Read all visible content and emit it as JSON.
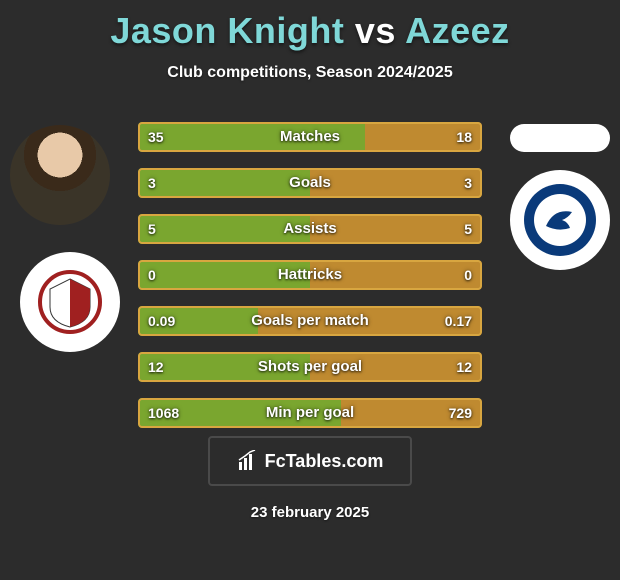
{
  "title": {
    "player1": "Jason Knight",
    "vs": "vs",
    "player2": "Azeez",
    "color1": "#7fd8d8",
    "color_vs": "#ffffff",
    "color2": "#7fd8d8",
    "fontsize": 36
  },
  "subtitle": "Club competitions, Season 2024/2025",
  "subtitle_fontsize": 16,
  "colors": {
    "background": "#2c2c2c",
    "fill_left": "#7aa62f",
    "fill_right": "#bf8a30",
    "track": "#3b3b3b",
    "border": "#d8a640",
    "text": "#ffffff"
  },
  "bar_style": {
    "height": 30,
    "gap": 16,
    "border_radius": 4,
    "border_width": 2,
    "label_fontsize": 15,
    "value_fontsize": 14
  },
  "stats": [
    {
      "label": "Matches",
      "left_val": "35",
      "right_val": "18",
      "left_pct": 66,
      "right_pct": 34
    },
    {
      "label": "Goals",
      "left_val": "3",
      "right_val": "3",
      "left_pct": 50,
      "right_pct": 50
    },
    {
      "label": "Assists",
      "left_val": "5",
      "right_val": "5",
      "left_pct": 50,
      "right_pct": 50
    },
    {
      "label": "Hattricks",
      "left_val": "0",
      "right_val": "0",
      "left_pct": 50,
      "right_pct": 50
    },
    {
      "label": "Goals per match",
      "left_val": "0.09",
      "right_val": "0.17",
      "left_pct": 35,
      "right_pct": 65
    },
    {
      "label": "Shots per goal",
      "left_val": "12",
      "right_val": "12",
      "left_pct": 50,
      "right_pct": 50
    },
    {
      "label": "Min per goal",
      "left_val": "1068",
      "right_val": "729",
      "left_pct": 59,
      "right_pct": 41
    }
  ],
  "badges": {
    "left_club_ring": "#a02020",
    "left_club_inner": "#ffffff",
    "right_club_ring": "#0a3a7a",
    "right_club_inner": "#ffffff"
  },
  "footer": {
    "site_name": "FcTables.com",
    "date": "23 february 2025"
  }
}
